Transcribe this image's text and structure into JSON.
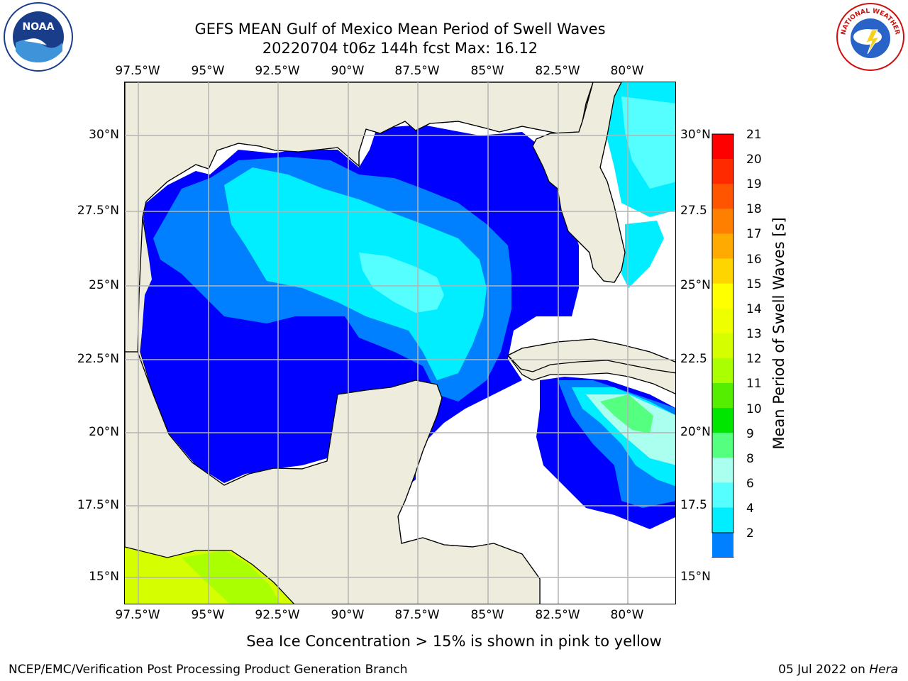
{
  "header": {
    "title_line1": "GEFS MEAN Gulf of Mexico Mean Period of Swell Waves",
    "title_line2": "20220704 t06z 144h fcst   Max: 16.12"
  },
  "logos": {
    "left": {
      "name": "noaa-logo",
      "text": "NOAA"
    },
    "right": {
      "name": "nws-logo",
      "text": "NATIONAL WEATHER SERVICE"
    }
  },
  "map": {
    "lon_ticks": [
      "97.5°W",
      "95°W",
      "92.5°W",
      "90°W",
      "87.5°W",
      "85°W",
      "82.5°W",
      "80°W"
    ],
    "lat_ticks_left": [
      "30°N",
      "27.5°N",
      "25°N",
      "22.5°N",
      "20°N",
      "17.5°N",
      "15°N"
    ],
    "lat_ticks_right": [
      "30°N",
      "27.5",
      "25°N",
      "22.5",
      "20°N",
      "17.5",
      "15°N"
    ],
    "colors": {
      "land": "#eeecdd",
      "coast": "#000000",
      "grid": "#b4b4b4",
      "nodata": "#ffffff"
    }
  },
  "colorbar": {
    "title": "Mean Period of Swell Waves [s]",
    "labels": [
      "21",
      "20",
      "19",
      "18",
      "17",
      "16",
      "15",
      "14",
      "13",
      "12",
      "11",
      "10",
      "9",
      "8",
      "6",
      "4",
      "2"
    ],
    "colors": [
      "#ff0000",
      "#ff2a00",
      "#ff5500",
      "#ff7f00",
      "#ffaa00",
      "#ffd500",
      "#ffff00",
      "#eeff00",
      "#d5ff00",
      "#aaff00",
      "#55ee00",
      "#00e600",
      "#55ff80",
      "#aaffee",
      "#55ffff",
      "#00eeff",
      "#0080ff",
      "#0000ff"
    ]
  },
  "footer": {
    "caption": "Sea Ice Concentration > 15% is shown in pink to yellow",
    "credit": "NCEP/EMC/Verification Post Processing Product Generation Branch",
    "date": "05 Jul 2022 on ",
    "machine": "Hera"
  }
}
